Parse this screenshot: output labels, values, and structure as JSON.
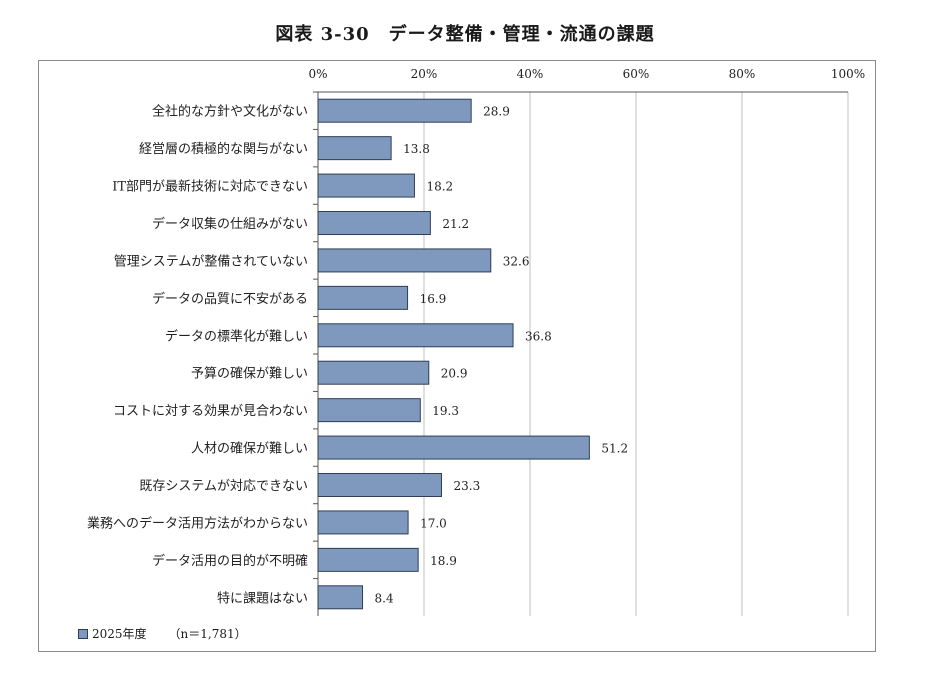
{
  "title": "図表 3-30　データ整備・管理・流通の課題",
  "legend": {
    "series": "2025年度",
    "n": "（n＝1,781）"
  },
  "chart_data": {
    "type": "bar",
    "orientation": "horizontal",
    "categories": [
      "全社的な方針や文化がない",
      "経営層の積極的な関与がない",
      "IT部門が最新技術に対応できない",
      "データ収集の仕組みがない",
      "管理システムが整備されていない",
      "データの品質に不安がある",
      "データの標準化が難しい",
      "予算の確保が難しい",
      "コストに対する効果が見合わない",
      "人材の確保が難しい",
      "既存システムが対応できない",
      "業務へのデータ活用方法がわからない",
      "データ活用の目的が不明確",
      "特に課題はない"
    ],
    "series": [
      {
        "name": "2025年度",
        "values": [
          28.9,
          13.8,
          18.2,
          21.2,
          32.6,
          16.9,
          36.8,
          20.9,
          19.3,
          51.2,
          23.3,
          17.0,
          18.9,
          8.4
        ]
      }
    ],
    "value_labels": [
      "28.9",
      "13.8",
      "18.2",
      "21.2",
      "32.6",
      "16.9",
      "36.8",
      "20.9",
      "19.3",
      "51.2",
      "23.3",
      "17.0",
      "18.9",
      "8.4"
    ],
    "xlim": [
      0,
      100
    ],
    "xticks": [
      "0%",
      "20%",
      "40%",
      "60%",
      "80%",
      "100%"
    ],
    "x_axis_position": "top",
    "grid": true,
    "colors": {
      "bar": "#7f99be",
      "bar_border": "#2f3e56",
      "grid": "#bfbfbf"
    }
  }
}
